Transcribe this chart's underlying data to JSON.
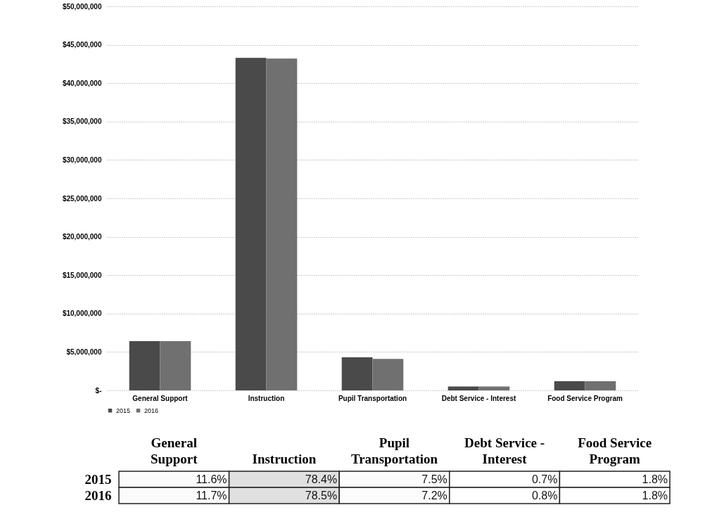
{
  "chart_data": [
    {
      "type": "bar",
      "categories": [
        "General Support",
        "Instruction",
        "Pupil Transportation",
        "Debt Service - Interest",
        "Food Service Program"
      ],
      "series": [
        {
          "name": "2015",
          "color": "#4a4a4a",
          "values": [
            6400000,
            43300000,
            4300000,
            500000,
            1200000
          ]
        },
        {
          "name": "2016",
          "color": "#707070",
          "values": [
            6400000,
            43200000,
            4100000,
            500000,
            1200000
          ]
        }
      ],
      "ylim": [
        0,
        50000000
      ],
      "yticks": [
        {
          "value": 0,
          "label": "$-"
        },
        {
          "value": 5000000,
          "label": "$5,000,000"
        },
        {
          "value": 10000000,
          "label": "$10,000,000"
        },
        {
          "value": 15000000,
          "label": "$15,000,000"
        },
        {
          "value": 20000000,
          "label": "$20,000,000"
        },
        {
          "value": 25000000,
          "label": "$25,000,000"
        },
        {
          "value": 30000000,
          "label": "$30,000,000"
        },
        {
          "value": 35000000,
          "label": "$35,000,000"
        },
        {
          "value": 40000000,
          "label": "$40,000,000"
        },
        {
          "value": 45000000,
          "label": "$45,000,000"
        },
        {
          "value": 50000000,
          "label": "$50,000,000"
        }
      ],
      "grid": "y",
      "legend": "bottom"
    },
    {
      "type": "heatmap",
      "categories": [
        "General Support",
        "Instruction",
        "Pupil Transportation",
        "Debt Service - Interest",
        "Food Service Program"
      ],
      "y_categories": [
        "2015",
        "2016"
      ],
      "cells": [
        [
          11.6,
          78.4,
          7.5,
          0.7,
          1.8
        ],
        [
          11.7,
          78.5,
          7.2,
          0.8,
          1.8
        ]
      ],
      "cell_labels": [
        [
          "11.6%",
          "78.4%",
          "7.5%",
          "0.7%",
          "1.8%"
        ],
        [
          "11.7%",
          "78.5%",
          "7.2%",
          "0.8%",
          "1.8%"
        ]
      ]
    }
  ]
}
